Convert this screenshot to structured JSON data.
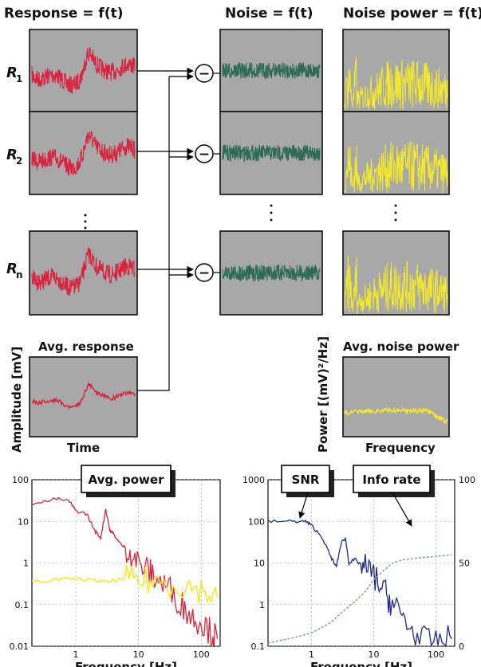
{
  "headers": {
    "response": "Response = f(t)",
    "noise": "Noise = f(t)",
    "noise_power": "Noise power = f(t)"
  },
  "row_labels": [
    "R",
    "R",
    "R"
  ],
  "row_subscripts": [
    "1",
    "2",
    "n"
  ],
  "minus_symbol": "−",
  "avg_response_label": "Avg. response",
  "avg_noise_power_label": "Avg. noise power",
  "amplitude_axis": "Amplitude [mV]",
  "power_axis": "Power [(mV)²/Hz]",
  "time_label": "Time",
  "frequency_label": "Frequency",
  "colors": {
    "response": "#d8243f",
    "noise": "#2d6b55",
    "noise_power": "#f4ea2a",
    "snr": "#1f2a8c",
    "info_rate": "#8aa88a"
  },
  "left_chart": {
    "callout": "Avg. power",
    "xlabel": "Frequency [Hz]",
    "y_ticks": [
      "100",
      "10",
      "1",
      "0.1",
      "0.01"
    ],
    "x_ticks": [
      "1",
      "10",
      "100"
    ]
  },
  "right_chart": {
    "callout_snr": "SNR",
    "callout_info": "Info rate",
    "xlabel": "Frequency [Hz]",
    "y_ticks": [
      "1000",
      "100",
      "10",
      "1",
      "0.1"
    ],
    "y2_ticks": [
      "100",
      "50",
      "0"
    ],
    "x_ticks": [
      "1",
      "10",
      "100"
    ]
  },
  "chart_data": [
    {
      "type": "line",
      "title": "",
      "callout": "Avg. power",
      "xlabel": "Frequency [Hz]",
      "ylabel": "",
      "x_scale": "log",
      "y_scale": "log",
      "xlim": [
        0.2,
        200
      ],
      "ylim": [
        0.01,
        100
      ],
      "grid": true,
      "series": [
        {
          "color": "#d8243f",
          "x": [
            0.2,
            0.5,
            0.8,
            1.0,
            1.5,
            2.0,
            2.5,
            3.0,
            3.5,
            4.0,
            5.0,
            7.0,
            10,
            15,
            20,
            30,
            50,
            70,
            100,
            150,
            180
          ],
          "y": [
            25,
            35,
            30,
            18,
            15,
            6,
            4,
            20,
            6,
            5,
            3,
            2,
            1,
            0.6,
            0.4,
            0.25,
            0.1,
            0.05,
            0.04,
            0.02,
            0.015
          ]
        },
        {
          "color": "#f4ea2a",
          "x": [
            0.2,
            0.5,
            1,
            2,
            3,
            5,
            10,
            20,
            50,
            100,
            180
          ],
          "y": [
            0.35,
            0.4,
            0.42,
            0.38,
            0.35,
            0.4,
            0.38,
            0.35,
            0.3,
            0.22,
            0.15
          ]
        }
      ]
    },
    {
      "type": "line",
      "title": "",
      "callouts": [
        "SNR",
        "Info rate"
      ],
      "xlabel": "Frequency [Hz]",
      "ylabel": "",
      "x_scale": "log",
      "y_scale": "log",
      "xlim": [
        0.2,
        200
      ],
      "ylim": [
        0.1,
        1000
      ],
      "y2lim": [
        0,
        100
      ],
      "grid": true,
      "series": [
        {
          "name": "SNR",
          "color": "#1f2a8c",
          "axis": "left",
          "x": [
            0.2,
            0.5,
            0.8,
            1.0,
            1.5,
            2.0,
            2.5,
            3.0,
            3.5,
            4.0,
            5,
            7,
            10,
            15,
            20,
            30,
            50,
            100,
            180
          ],
          "y": [
            100,
            100,
            100,
            80,
            40,
            15,
            8,
            30,
            40,
            10,
            12,
            8,
            5,
            2,
            1,
            0.5,
            0.15,
            0.12,
            0.15
          ]
        },
        {
          "name": "Info rate",
          "color": "#8aa88a",
          "axis": "right",
          "x": [
            0.2,
            0.5,
            1,
            2,
            3,
            5,
            7,
            10,
            15,
            20,
            30,
            50,
            100,
            180
          ],
          "y": [
            2,
            5,
            8,
            14,
            20,
            27,
            32,
            40,
            46,
            50,
            52,
            53,
            54,
            55
          ]
        }
      ]
    }
  ]
}
